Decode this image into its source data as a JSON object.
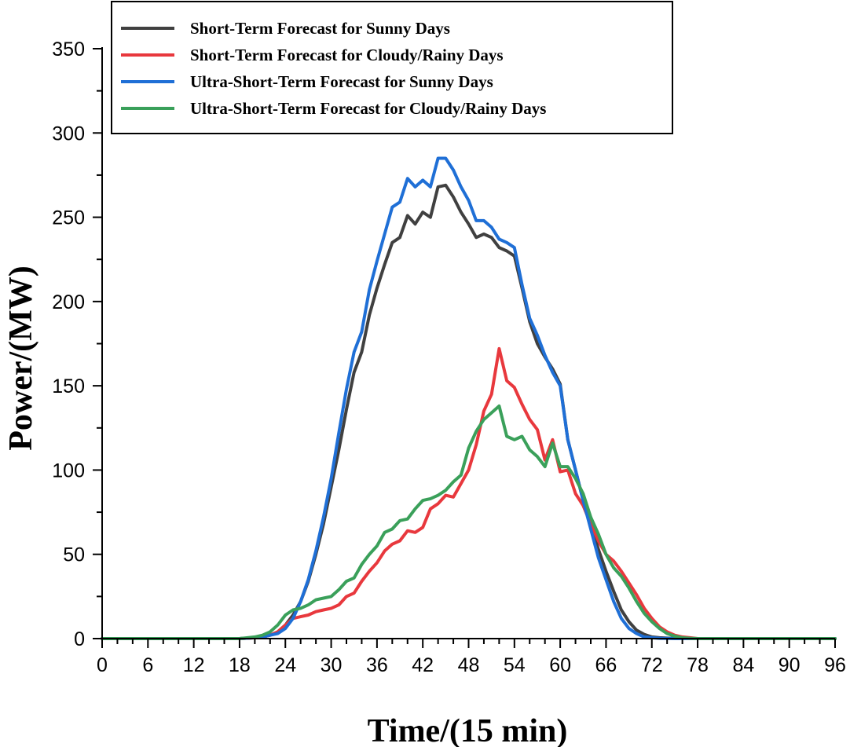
{
  "chart_data": {
    "type": "line",
    "title": "",
    "xlabel": "Time/(15 min)",
    "ylabel": "Power/(MW)",
    "xlim": [
      0,
      96
    ],
    "ylim": [
      0,
      350
    ],
    "xticks": [
      0,
      6,
      12,
      18,
      24,
      30,
      36,
      42,
      48,
      54,
      60,
      66,
      72,
      78,
      84,
      90,
      96
    ],
    "yticks": [
      0,
      50,
      100,
      150,
      200,
      250,
      300,
      350
    ],
    "grid": false,
    "legend_position": "top-left",
    "series": [
      {
        "name": "Short-Term Forecast for Sunny Days",
        "color": "#404040",
        "x": [
          0,
          18,
          20,
          21,
          22,
          23,
          24,
          25,
          26,
          27,
          28,
          29,
          30,
          31,
          32,
          33,
          34,
          35,
          36,
          37,
          38,
          39,
          40,
          41,
          42,
          43,
          44,
          45,
          46,
          47,
          48,
          49,
          50,
          51,
          52,
          53,
          54,
          55,
          56,
          57,
          58,
          59,
          60,
          61,
          62,
          63,
          64,
          65,
          66,
          67,
          68,
          69,
          70,
          71,
          72,
          73,
          74,
          75,
          76,
          77,
          78,
          96
        ],
        "values": [
          0,
          0,
          0.5,
          1,
          2,
          4,
          8,
          14,
          22,
          34,
          50,
          68,
          90,
          112,
          136,
          158,
          170,
          192,
          208,
          222,
          235,
          238,
          251,
          246,
          253,
          250,
          268,
          269,
          262,
          253,
          246,
          238,
          240,
          238,
          232,
          230,
          227,
          208,
          188,
          175,
          167,
          160,
          151,
          118,
          100,
          82,
          68,
          53,
          40,
          28,
          17,
          10,
          5,
          2.5,
          1,
          0.5,
          0.3,
          0.1,
          0,
          0,
          0,
          0
        ]
      },
      {
        "name": "Short-Term Forecast for Cloudy/Rainy Days",
        "color": "#e8383d",
        "x": [
          0,
          18,
          20,
          21,
          22,
          23,
          24,
          25,
          26,
          27,
          28,
          29,
          30,
          31,
          32,
          33,
          34,
          35,
          36,
          37,
          38,
          39,
          40,
          41,
          42,
          43,
          44,
          45,
          46,
          47,
          48,
          49,
          50,
          51,
          52,
          53,
          54,
          55,
          56,
          57,
          58,
          59,
          60,
          61,
          62,
          63,
          64,
          65,
          66,
          67,
          68,
          69,
          70,
          71,
          72,
          73,
          74,
          75,
          76,
          77,
          78,
          96
        ],
        "values": [
          0,
          0,
          0.5,
          1,
          2,
          4,
          8,
          12,
          13,
          14,
          16,
          17,
          18,
          20,
          25,
          27,
          34,
          40,
          45,
          52,
          56,
          58,
          64,
          63,
          66,
          77,
          80,
          85,
          84,
          92,
          100,
          115,
          135,
          145,
          172,
          153,
          149,
          139,
          130,
          124,
          106,
          118,
          99,
          100,
          86,
          79,
          68,
          58,
          50,
          46,
          40,
          33,
          26,
          18,
          12,
          7,
          4,
          2,
          1,
          0.5,
          0,
          0
        ]
      },
      {
        "name": "Ultra-Short-Term Forecast for Sunny Days",
        "color": "#1f6fd6",
        "x": [
          0,
          18,
          20,
          21,
          22,
          23,
          24,
          25,
          26,
          27,
          28,
          29,
          30,
          31,
          32,
          33,
          34,
          35,
          36,
          37,
          38,
          39,
          40,
          41,
          42,
          43,
          44,
          45,
          46,
          47,
          48,
          49,
          50,
          51,
          52,
          53,
          54,
          55,
          56,
          57,
          58,
          59,
          60,
          61,
          62,
          63,
          64,
          65,
          66,
          67,
          68,
          69,
          70,
          71,
          72,
          73,
          74,
          75,
          76,
          77,
          78,
          96
        ],
        "values": [
          0,
          0,
          0.5,
          1,
          2,
          3,
          6,
          12,
          22,
          35,
          52,
          72,
          95,
          122,
          148,
          170,
          182,
          207,
          224,
          240,
          256,
          259,
          273,
          268,
          272,
          268,
          285,
          285,
          278,
          268,
          260,
          248,
          248,
          244,
          237,
          235,
          232,
          210,
          190,
          180,
          168,
          158,
          150,
          118,
          100,
          82,
          65,
          48,
          35,
          22,
          12,
          6,
          3,
          1,
          0.5,
          0.2,
          0.1,
          0,
          0,
          0,
          0,
          0
        ]
      },
      {
        "name": "Ultra-Short-Term Forecast for Cloudy/Rainy Days",
        "color": "#3aa05a",
        "x": [
          0,
          18,
          20,
          21,
          22,
          23,
          24,
          25,
          26,
          27,
          28,
          29,
          30,
          31,
          32,
          33,
          34,
          35,
          36,
          37,
          38,
          39,
          40,
          41,
          42,
          43,
          44,
          45,
          46,
          47,
          48,
          49,
          50,
          51,
          52,
          53,
          54,
          55,
          56,
          57,
          58,
          59,
          60,
          61,
          62,
          63,
          64,
          65,
          66,
          67,
          68,
          69,
          70,
          71,
          72,
          73,
          74,
          75,
          76,
          77,
          78,
          96
        ],
        "values": [
          0,
          0,
          1,
          2,
          4,
          8,
          14,
          17,
          18,
          20,
          23,
          24,
          25,
          29,
          34,
          36,
          44,
          50,
          55,
          63,
          65,
          70,
          71,
          77,
          82,
          83,
          85,
          88,
          93,
          97,
          113,
          123,
          130,
          134,
          138,
          120,
          118,
          120,
          112,
          108,
          102,
          116,
          102,
          102,
          95,
          86,
          72,
          62,
          50,
          42,
          37,
          30,
          22,
          15,
          10,
          6,
          3,
          1.5,
          0.5,
          0.2,
          0,
          0
        ]
      }
    ]
  }
}
